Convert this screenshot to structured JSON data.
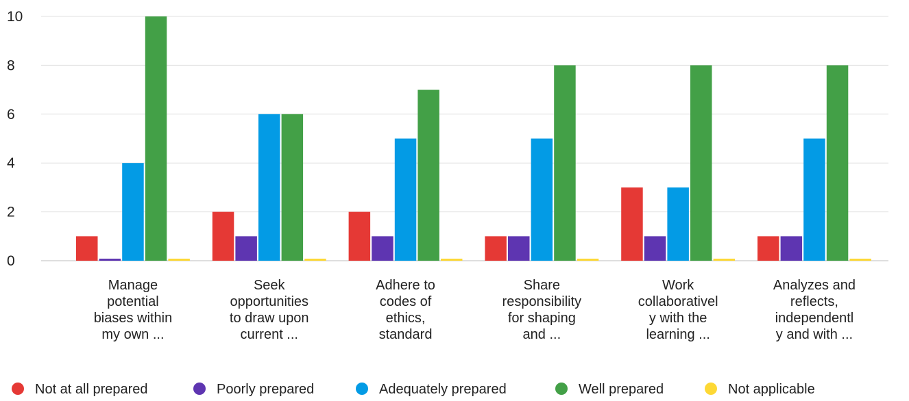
{
  "chart_data": {
    "type": "bar",
    "categories": [
      [
        "Manage",
        "potential",
        "biases within",
        "my own ..."
      ],
      [
        "Seek",
        "opportunities",
        "to draw upon",
        "current ..."
      ],
      [
        "Adhere to",
        "codes of",
        "ethics,",
        "standard"
      ],
      [
        "Share",
        "responsibility",
        "for shaping",
        "and ..."
      ],
      [
        "Work",
        "collaborativel",
        "y with the",
        "learning ..."
      ],
      [
        "Analyzes and",
        "reflects,",
        "independentl",
        "y and with ..."
      ]
    ],
    "series": [
      {
        "name": "Not at all prepared",
        "color": "#e53935",
        "values": [
          1,
          2,
          2,
          1,
          3,
          1
        ]
      },
      {
        "name": "Poorly prepared",
        "color": "#5e35b1",
        "values": [
          0,
          1,
          1,
          1,
          1,
          1
        ]
      },
      {
        "name": "Adequately prepared",
        "color": "#039be5",
        "values": [
          4,
          6,
          5,
          5,
          3,
          5
        ]
      },
      {
        "name": "Well prepared",
        "color": "#43a047",
        "values": [
          10,
          6,
          7,
          8,
          8,
          8
        ]
      },
      {
        "name": "Not applicable",
        "color": "#fdd835",
        "values": [
          0,
          0,
          0,
          0,
          0,
          0
        ]
      }
    ],
    "yticks": [
      "0",
      "2",
      "4",
      "6",
      "8",
      "10"
    ],
    "ylim": [
      0,
      10
    ],
    "grid": true,
    "legend_position": "bottom",
    "title": "",
    "xlabel": "",
    "ylabel": ""
  }
}
